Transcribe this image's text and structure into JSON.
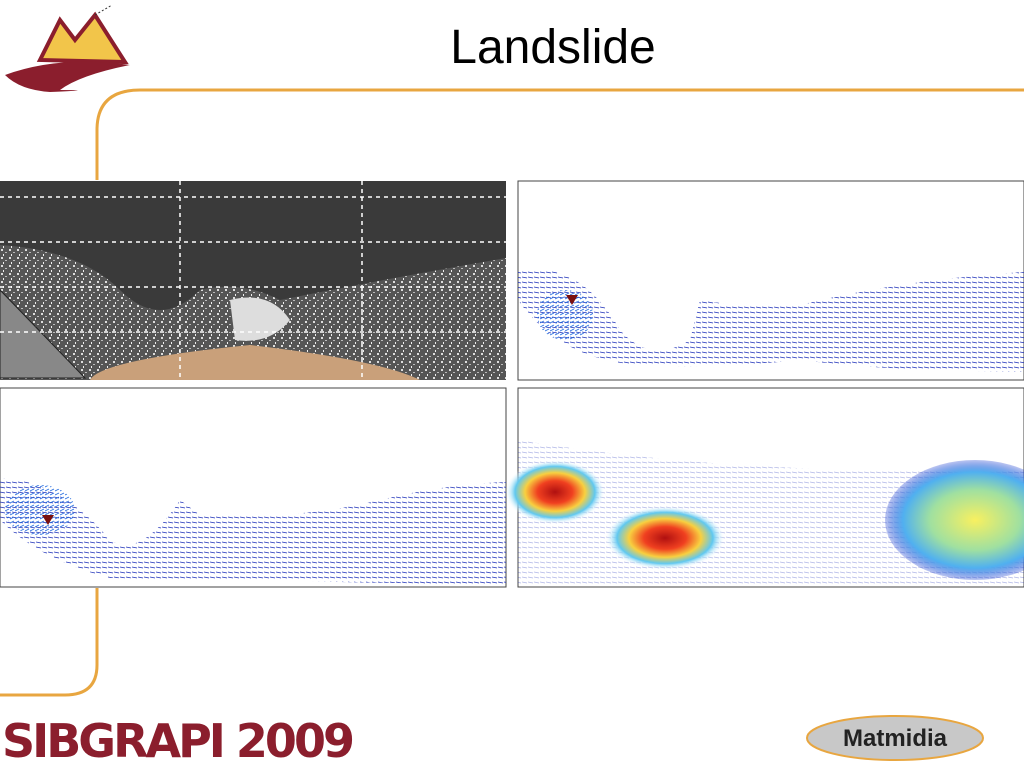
{
  "slide": {
    "title": "Landslide"
  },
  "footer": {
    "left_logo": "SIBGRAPI 2009",
    "right_logo": "Matmidia"
  }
}
